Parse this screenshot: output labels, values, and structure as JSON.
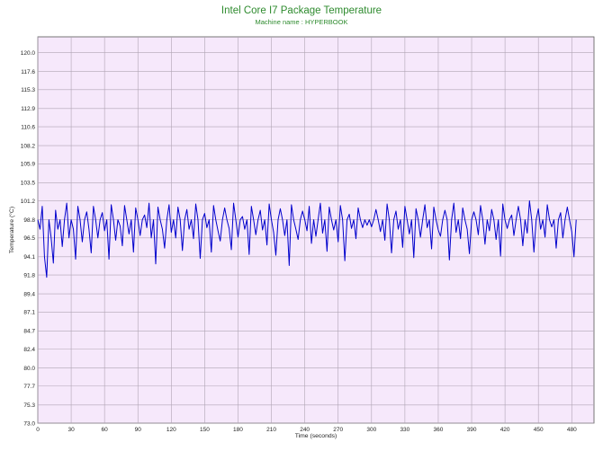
{
  "chart_data": {
    "type": "line",
    "title": "Intel Core I7 Package Temperature",
    "subtitle": "Machine name : HYPERBOOK",
    "xlabel": "Time (seconds)",
    "ylabel": "Temperature (°C)",
    "xlim": [
      0,
      500
    ],
    "ylim": [
      73.0,
      122.0
    ],
    "x_ticks": [
      "0",
      "30",
      "60",
      "90",
      "120",
      "150",
      "180",
      "210",
      "240",
      "270",
      "300",
      "330",
      "360",
      "390",
      "420",
      "450",
      "480"
    ],
    "y_ticks": [
      "120.0",
      "117.6",
      "115.3",
      "112.9",
      "110.6",
      "108.2",
      "105.9",
      "103.5",
      "101.2",
      "98.8",
      "96.5",
      "94.1",
      "91.8",
      "89.4",
      "87.1",
      "84.7",
      "82.4",
      "80.0",
      "77.7",
      "75.3",
      "73.0"
    ],
    "grid": true,
    "colors": {
      "background": "#f6e8fb",
      "grid": "#b0a4b4",
      "line": "#0000cc",
      "title": "#2e8b2e"
    },
    "series": [
      {
        "x_start": 0,
        "x_step": 2,
        "values": [
          98.8,
          97.6,
          100.5,
          94.1,
          91.5,
          98.8,
          96.5,
          93.3,
          100.0,
          97.6,
          98.8,
          95.4,
          98.8,
          100.9,
          96.5,
          98.8,
          97.6,
          93.8,
          100.5,
          98.8,
          96.0,
          98.8,
          99.8,
          97.6,
          94.6,
          100.5,
          98.8,
          96.5,
          98.8,
          99.7,
          97.4,
          98.8,
          93.8,
          100.7,
          98.8,
          96.2,
          98.8,
          98.0,
          95.5,
          100.6,
          98.8,
          97.0,
          98.8,
          94.7,
          100.3,
          98.8,
          96.8,
          98.8,
          99.4,
          97.8,
          100.9,
          96.5,
          98.8,
          93.2,
          100.4,
          98.8,
          97.6,
          95.2,
          98.8,
          100.7,
          97.2,
          98.8,
          96.5,
          100.4,
          98.8,
          94.9,
          98.8,
          100.1,
          97.6,
          98.8,
          96.4,
          100.8,
          98.8,
          93.9,
          98.8,
          99.6,
          97.8,
          98.8,
          94.7,
          100.6,
          98.8,
          97.4,
          96.1,
          98.8,
          100.3,
          98.8,
          97.7,
          95.0,
          100.9,
          98.8,
          96.6,
          98.8,
          99.2,
          97.6,
          98.8,
          94.4,
          100.5,
          98.8,
          96.9,
          98.8,
          100.0,
          97.5,
          98.8,
          95.6,
          100.8,
          98.8,
          97.2,
          94.3,
          98.8,
          100.2,
          98.8,
          96.8,
          98.8,
          93.0,
          100.7,
          98.8,
          97.6,
          96.3,
          98.8,
          99.9,
          98.8,
          97.4,
          100.5,
          95.8,
          98.8,
          96.7,
          98.8,
          100.9,
          97.1,
          98.8,
          94.8,
          100.4,
          98.8,
          97.5,
          98.8,
          96.0,
          100.6,
          98.8,
          93.6,
          98.8,
          99.5,
          97.7,
          98.8,
          96.4,
          100.3,
          98.8,
          97.8,
          98.8,
          98.1,
          98.8,
          97.9,
          98.8,
          100.1,
          98.8,
          97.3,
          98.8,
          96.2,
          100.8,
          98.8,
          94.6,
          98.8,
          99.9,
          97.6,
          98.8,
          95.3,
          100.5,
          98.8,
          97.0,
          98.8,
          94.0,
          100.2,
          98.8,
          96.6,
          98.8,
          100.7,
          97.8,
          98.8,
          95.1,
          100.4,
          98.8,
          97.5,
          96.7,
          98.8,
          100.0,
          98.8,
          93.7,
          98.8,
          100.9,
          97.2,
          98.8,
          96.4,
          100.3,
          98.8,
          97.6,
          94.5,
          98.8,
          99.8,
          98.8,
          96.9,
          100.6,
          98.8,
          95.7,
          98.8,
          97.4,
          100.1,
          98.8,
          96.3,
          98.8,
          94.2,
          100.8,
          98.8,
          97.7,
          98.8,
          99.4,
          96.8,
          98.8,
          100.5,
          98.8,
          95.5,
          98.8,
          97.1,
          101.2,
          98.8,
          94.7,
          98.8,
          100.2,
          97.6,
          98.8,
          96.6,
          100.7,
          98.8,
          97.9,
          98.8,
          95.2,
          98.8,
          99.7,
          96.5,
          98.8,
          100.4,
          98.8,
          97.3,
          94.1,
          98.8
        ]
      }
    ]
  }
}
